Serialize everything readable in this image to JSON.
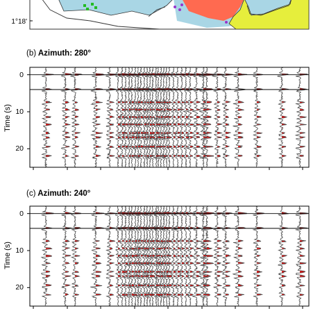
{
  "panel_a": {
    "lat_label": "1°18'",
    "region_colors": {
      "sea": "#a9d6e5",
      "red_zone": "#ff6a50",
      "yellow_zone": "#e6ee3c",
      "outline": "#333333"
    }
  },
  "panel_b": {
    "letter": "(b)",
    "title": "Azimuth: 280°",
    "ylabel": "Time (s)",
    "yticks": [
      "0",
      "10",
      "20"
    ]
  },
  "panel_c": {
    "letter": "(c)",
    "title": "Azimuth: 240°",
    "ylabel": "Time (s)",
    "yticks": [
      "0",
      "10",
      "20"
    ]
  },
  "colors": {
    "trace": "#4a4a4a",
    "fill": "#dd1111"
  },
  "chart_data": [
    {
      "type": "line",
      "panel": "b",
      "title": "Azimuth: 280°",
      "ylabel": "Time (s)",
      "ylim": [
        25,
        -2
      ],
      "grid": false,
      "reference_lines_time_s": [
        0,
        4
      ],
      "trace_count": 38
    },
    {
      "type": "line",
      "panel": "c",
      "title": "Azimuth: 240°",
      "ylabel": "Time (s)",
      "ylim": [
        25,
        -2
      ],
      "grid": false,
      "reference_lines_time_s": [
        0,
        4
      ],
      "trace_count": 38
    }
  ]
}
